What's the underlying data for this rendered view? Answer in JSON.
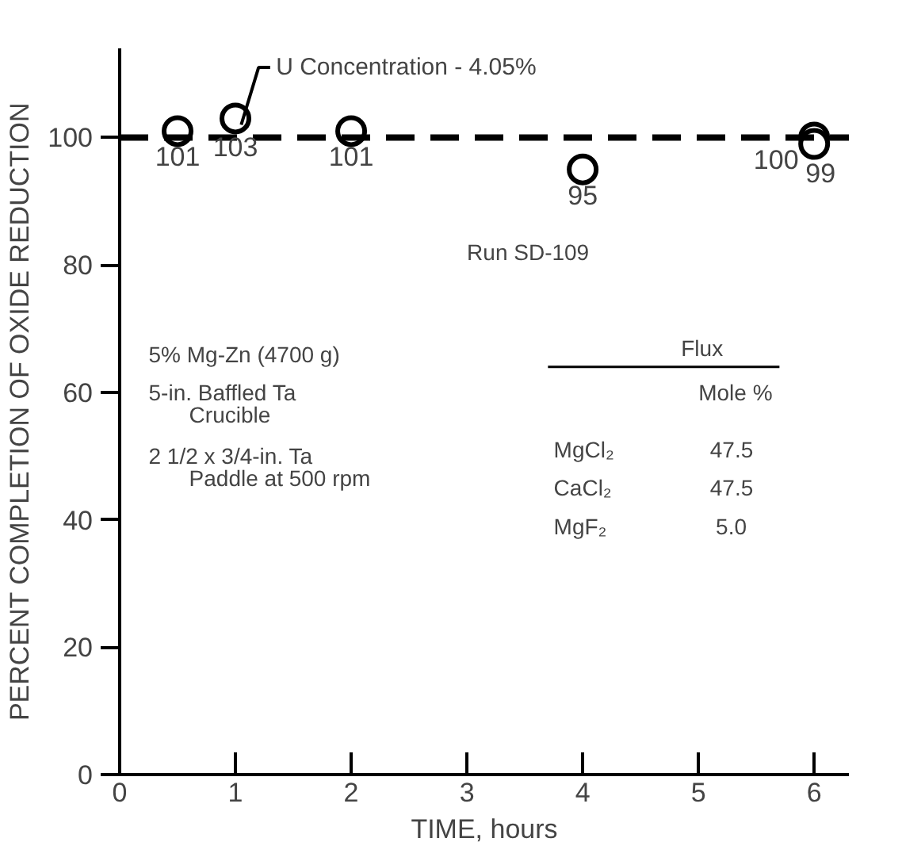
{
  "chart_data": {
    "type": "scatter",
    "xlabel": "TIME, hours",
    "ylabel": "PERCENT COMPLETION OF OXIDE REDUCTION",
    "x": [
      0.5,
      1,
      2,
      4,
      6,
      6
    ],
    "values": [
      101,
      103,
      101,
      95,
      100,
      99
    ],
    "color": "#000000",
    "marker": "circle",
    "data_labels": true,
    "xlim": [
      0,
      6.3
    ],
    "ylim": [
      0,
      114
    ],
    "xticks": [
      0,
      1,
      2,
      3,
      4,
      5,
      6
    ],
    "yticks": [
      0,
      20,
      40,
      60,
      80,
      100
    ],
    "grid": false,
    "ref_lines": [
      {
        "axis": "y",
        "value": 100,
        "line_style": "dashed",
        "color": "#000000"
      }
    ],
    "annotations": [
      {
        "text": "U Concentration - 4.05%",
        "x": 1,
        "y": 103
      },
      "Run SD-109",
      "5% Mg-Zn (4700 g)",
      "5-in. Baffled Ta",
      "Crucible",
      "2 1/2 x 3/4-in. Ta",
      "Paddle at 500 rpm",
      "Flux",
      "Mole %",
      "MgCl₂",
      "47.5",
      "CaCl₂",
      "47.5",
      "MgF₂",
      "5.0"
    ]
  }
}
